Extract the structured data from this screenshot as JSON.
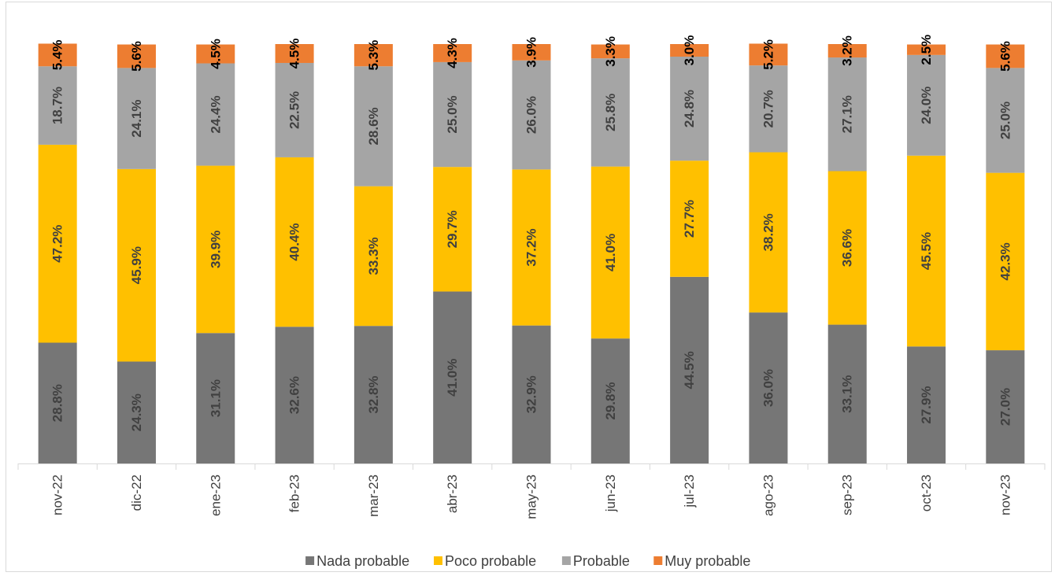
{
  "chart_data": {
    "type": "bar",
    "stacked": true,
    "percent_stacked": true,
    "categories": [
      "nov-22",
      "dic-22",
      "ene-23",
      "feb-23",
      "mar-23",
      "abr-23",
      "may-23",
      "jun-23",
      "jul-23",
      "ago-23",
      "sep-23",
      "oct-23",
      "nov-23"
    ],
    "series": [
      {
        "name": "Nada probable",
        "color": "#767676",
        "label_color": "#404040",
        "values": [
          28.8,
          24.3,
          31.1,
          32.6,
          32.8,
          41.0,
          32.9,
          29.8,
          44.5,
          36.0,
          33.1,
          27.9,
          27.0
        ]
      },
      {
        "name": "Poco probable",
        "color": "#ffc000",
        "label_color": "#404040",
        "values": [
          47.2,
          45.9,
          39.9,
          40.4,
          33.3,
          29.7,
          37.2,
          41.0,
          27.7,
          38.2,
          36.6,
          45.5,
          42.3
        ]
      },
      {
        "name": "Probable",
        "color": "#a5a5a5",
        "label_color": "#404040",
        "values": [
          18.7,
          24.1,
          24.4,
          22.5,
          28.6,
          25.0,
          26.0,
          25.8,
          24.8,
          20.7,
          27.1,
          24.0,
          25.0
        ]
      },
      {
        "name": "Muy probable",
        "color": "#ed7d31",
        "label_color": "#000000",
        "values": [
          5.4,
          5.6,
          4.5,
          4.5,
          5.3,
          4.3,
          3.9,
          3.3,
          3.0,
          5.2,
          3.2,
          2.5,
          5.6
        ]
      }
    ],
    "value_suffix": "%",
    "ylim": [
      0,
      100
    ],
    "grid": false,
    "legend_position": "bottom",
    "title": "",
    "xlabel": "",
    "ylabel": ""
  }
}
